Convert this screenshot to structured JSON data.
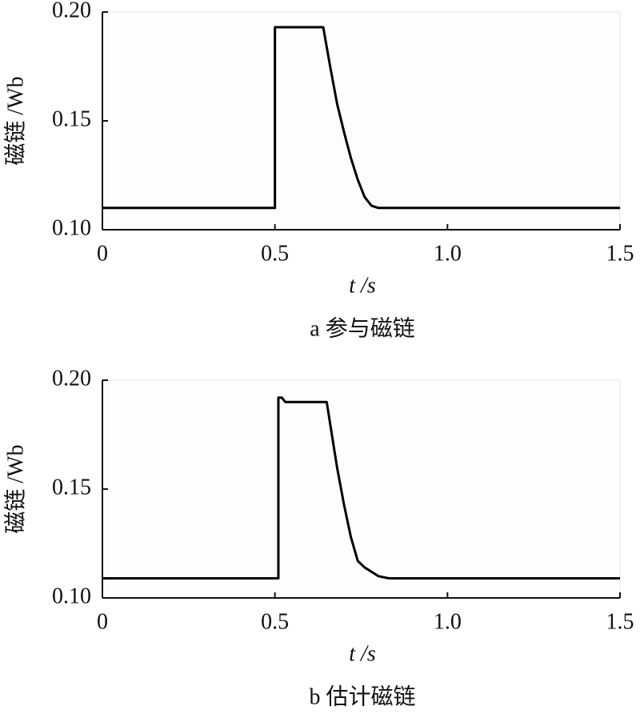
{
  "chart_data": [
    {
      "type": "line",
      "x_label": "t /s",
      "y_label": "磁链 /Wb",
      "caption": "a 参与磁链",
      "x": [
        0,
        0.5,
        0.5,
        0.64,
        0.66,
        0.68,
        0.7,
        0.72,
        0.74,
        0.76,
        0.78,
        0.8,
        1.5
      ],
      "series": [
        {
          "color": "#000000",
          "values": [
            0.11,
            0.11,
            0.193,
            0.193,
            0.175,
            0.158,
            0.145,
            0.133,
            0.123,
            0.115,
            0.111,
            0.11,
            0.11
          ]
        }
      ],
      "xlim": [
        0,
        1.5
      ],
      "xticks": [
        0,
        0.5,
        {
          "value": 1.0,
          "label": "1.0"
        },
        1.5
      ],
      "ylim": [
        0.1,
        0.2
      ],
      "yticks": [
        {
          "value": 0.1,
          "label": "0.10"
        },
        {
          "value": 0.15,
          "label": "0.15"
        },
        {
          "value": 0.2,
          "label": "0.20"
        }
      ]
    },
    {
      "type": "line",
      "x_label": "t /s",
      "y_label": "磁链 /Wb",
      "caption": "b 估计磁链",
      "x": [
        0,
        0.51,
        0.51,
        0.52,
        0.53,
        0.65,
        0.66,
        0.68,
        0.7,
        0.72,
        0.74,
        0.76,
        0.78,
        0.8,
        0.83,
        1.5
      ],
      "series": [
        {
          "color": "#000000",
          "values": [
            0.109,
            0.109,
            0.192,
            0.192,
            0.19,
            0.19,
            0.18,
            0.16,
            0.143,
            0.128,
            0.117,
            0.114,
            0.112,
            0.11,
            0.109,
            0.109
          ]
        }
      ],
      "xlim": [
        0,
        1.5
      ],
      "xticks": [
        0,
        0.5,
        {
          "value": 1.0,
          "label": "1.0"
        },
        1.5
      ],
      "ylim": [
        0.1,
        0.2
      ],
      "yticks": [
        {
          "value": 0.1,
          "label": "0.10"
        },
        {
          "value": 0.15,
          "label": "0.15"
        },
        {
          "value": 0.2,
          "label": "0.20"
        }
      ]
    }
  ]
}
